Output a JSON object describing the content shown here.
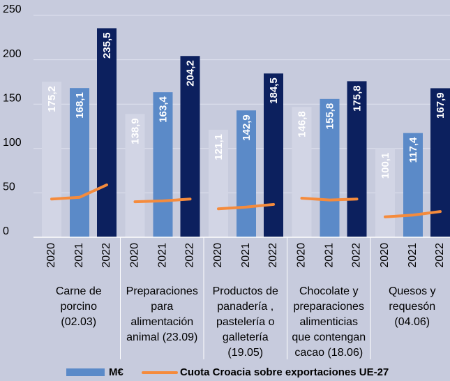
{
  "chart_data": {
    "type": "grouped-bar-line",
    "categories": [
      [
        "Carne de",
        "porcino",
        "(02.03)"
      ],
      [
        "Preparaciones",
        "para",
        "alimentación",
        "animal  (23.09)"
      ],
      [
        "Productos de",
        "panadería ,",
        "pastelería o",
        "galletería",
        "(19.05)"
      ],
      [
        "Chocolate y",
        "preparaciones",
        "alimenticias",
        "que contengan",
        "cacao  (18.06)"
      ],
      [
        "Quesos y",
        "requesón",
        "(04.06)"
      ]
    ],
    "years": [
      "2020",
      "2021",
      "2022"
    ],
    "series": [
      {
        "name": "M€",
        "type": "bar",
        "color": "#5b8ac8",
        "year_colors": [
          "#d2d5e5",
          "#5b8ac8",
          "#0c205e"
        ],
        "values": [
          [
            175.2,
            168.1,
            235.5
          ],
          [
            138.9,
            163.4,
            204.2
          ],
          [
            121.1,
            142.9,
            184.5
          ],
          [
            146.8,
            155.8,
            175.8
          ],
          [
            100.1,
            117.4,
            167.9
          ]
        ],
        "value_labels": [
          [
            "175,2",
            "168,1",
            "235,5"
          ],
          [
            "138,9",
            "163,4",
            "204,2"
          ],
          [
            "121,1",
            "142,9",
            "184,5"
          ],
          [
            "146,8",
            "155,8",
            "175,8"
          ],
          [
            "100,1",
            "117,4",
            "167,9"
          ]
        ]
      },
      {
        "name": "Cuota Croacia sobre exportaciones UE-27",
        "type": "line",
        "color": "#f58b3c",
        "values": [
          [
            43,
            45,
            59
          ],
          [
            40,
            41,
            43
          ],
          [
            32,
            34,
            37
          ],
          [
            44,
            42,
            43
          ],
          [
            23,
            25,
            29
          ]
        ]
      }
    ],
    "ylim": [
      0,
      250
    ],
    "yticks": [
      0,
      50,
      100,
      150,
      200,
      250
    ],
    "grid": true
  }
}
